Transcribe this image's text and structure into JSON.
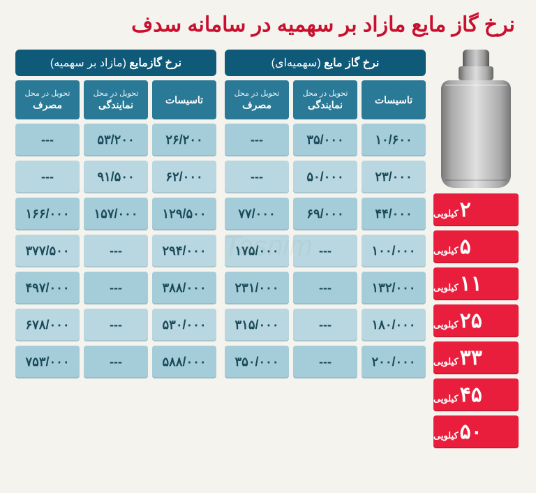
{
  "title": "نرخ گاز مایع مازاد بر سهمیه در سامانه سدف",
  "colors": {
    "title": "#c8102e",
    "badge_bg": "#e91e3c",
    "group_header_bg": "#0f5a78",
    "col_header_bg": "#2a7a97",
    "cell_bg_even": "#a5cdd9",
    "cell_bg_odd": "#b8d7e0",
    "page_bg": "#f5f3ee"
  },
  "weights": [
    {
      "num": "۲",
      "unit": "کیلویی"
    },
    {
      "num": "۵",
      "unit": "کیلویی"
    },
    {
      "num": "۱۱",
      "unit": "کیلویی"
    },
    {
      "num": "۲۵",
      "unit": "کیلویی"
    },
    {
      "num": "۳۳",
      "unit": "کیلویی"
    },
    {
      "num": "۴۵",
      "unit": "کیلویی"
    },
    {
      "num": "۵۰",
      "unit": "کیلویی"
    }
  ],
  "groups": {
    "right": {
      "title_main": "نرخ گاز مایع",
      "title_sub": "(سهمیه‌ای)"
    },
    "left": {
      "title_main": "نرخ گازمایع",
      "title_sub": "(مازاد بر سهمیه)"
    }
  },
  "columns": [
    {
      "line1": "",
      "line2": "تاسیسات"
    },
    {
      "line1": "تحویل در محل",
      "line2": "نمایندگی"
    },
    {
      "line1": "تحویل در محل",
      "line2": "مصرف"
    }
  ],
  "data_right": [
    [
      "۱۰/۶۰۰",
      "۳۵/۰۰۰",
      "---"
    ],
    [
      "۲۳/۰۰۰",
      "۵۰/۰۰۰",
      "---"
    ],
    [
      "۴۴/۰۰۰",
      "۶۹/۰۰۰",
      "۷۷/۰۰۰"
    ],
    [
      "۱۰۰/۰۰۰",
      "---",
      "۱۷۵/۰۰۰"
    ],
    [
      "۱۳۲/۰۰۰",
      "---",
      "۲۳۱/۰۰۰"
    ],
    [
      "۱۸۰/۰۰۰",
      "---",
      "۳۱۵/۰۰۰"
    ],
    [
      "۲۰۰/۰۰۰",
      "---",
      "۳۵۰/۰۰۰"
    ]
  ],
  "data_left": [
    [
      "۲۶/۲۰۰",
      "۵۳/۲۰۰",
      "---"
    ],
    [
      "۶۲/۰۰۰",
      "۹۱/۵۰۰",
      "---"
    ],
    [
      "۱۲۹/۵۰۰",
      "۱۵۷/۰۰۰",
      "۱۶۶/۰۰۰"
    ],
    [
      "۲۹۴/۰۰۰",
      "---",
      "۳۷۷/۵۰۰"
    ],
    [
      "۳۸۸/۰۰۰",
      "---",
      "۴۹۷/۰۰۰"
    ],
    [
      "۵۳۰/۰۰۰",
      "---",
      "۶۷۸/۰۰۰"
    ],
    [
      "۵۸۸/۰۰۰",
      "---",
      "۷۵۳/۰۰۰"
    ]
  ],
  "watermark": "Tasnim"
}
